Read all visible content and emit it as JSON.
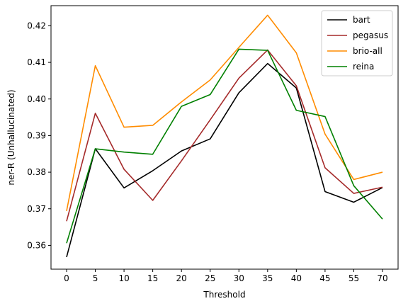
{
  "chart_data": {
    "type": "line",
    "x": [
      "0",
      "5",
      "10",
      "15",
      "20",
      "25",
      "30",
      "35",
      "40",
      "45",
      "55",
      "70"
    ],
    "xlabel": "Threshold",
    "ylabel": "ner-R (Unhallucinated)",
    "ylim": [
      0.3535,
      0.4255
    ],
    "yticks": [
      0.36,
      0.37,
      0.38,
      0.39,
      0.4,
      0.41,
      0.42
    ],
    "ytick_labels": [
      "0.36",
      "0.37",
      "0.38",
      "0.39",
      "0.40",
      "0.41",
      "0.42"
    ],
    "grid": false,
    "legend_position": "top-right",
    "series": [
      {
        "name": "bart",
        "color": "#000000",
        "values": [
          0.3568,
          0.3864,
          0.3757,
          0.3804,
          0.3858,
          0.3891,
          0.4017,
          0.4097,
          0.403,
          0.3747,
          0.3718,
          0.3758
        ]
      },
      {
        "name": "pegasus",
        "color": "#a52a2a",
        "values": [
          0.3666,
          0.3961,
          0.3808,
          0.3723,
          0.3831,
          0.3943,
          0.4057,
          0.4134,
          0.4036,
          0.3812,
          0.3742,
          0.3759
        ]
      },
      {
        "name": "brio-all",
        "color": "#ff8c00",
        "values": [
          0.3694,
          0.4091,
          0.3923,
          0.3928,
          0.3992,
          0.4052,
          0.4141,
          0.4229,
          0.4126,
          0.3904,
          0.378,
          0.38
        ]
      },
      {
        "name": "reina",
        "color": "#008000",
        "values": [
          0.3606,
          0.3864,
          0.3855,
          0.3849,
          0.398,
          0.4012,
          0.4136,
          0.4133,
          0.3969,
          0.3952,
          0.3763,
          0.3672
        ]
      }
    ]
  }
}
